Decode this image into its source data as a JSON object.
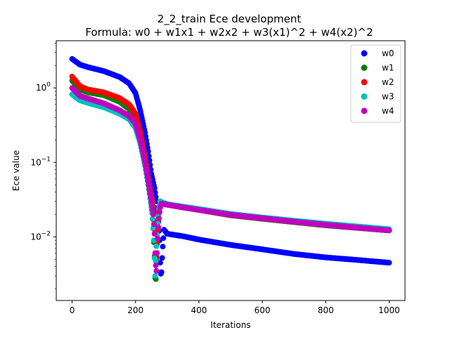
{
  "chart_data": {
    "type": "scatter",
    "title_line1": "2_2_train Ece development",
    "title_line2": "Formula: w0 + w1x1 + w2x2 + w3(x1)^2 + w4(x2)^2",
    "xlabel": "Iterations",
    "ylabel": "Ece value",
    "xlim": [
      -50,
      1050
    ],
    "ylim": [
      0.0014,
      4.3
    ],
    "yscale": "log",
    "xticks": [
      0,
      200,
      400,
      600,
      800,
      1000
    ],
    "xtick_labels": [
      "0",
      "200",
      "400",
      "600",
      "800",
      "1000"
    ],
    "yticks": [
      0.01,
      0.1,
      1
    ],
    "ytick_label_base": "10",
    "ytick_label_exps": [
      "−2",
      "−1",
      "0"
    ],
    "legend_placement": "upper right",
    "grid": false,
    "series": [
      {
        "name": "w0",
        "color": "#0000ff",
        "x": [
          0,
          25,
          50,
          100,
          150,
          180,
          200,
          215,
          230,
          240,
          250,
          260,
          266,
          272,
          276,
          278,
          281,
          285,
          290,
          300,
          350,
          400,
          500,
          600,
          700,
          800,
          900,
          1000
        ],
        "y": [
          2.45,
          2.05,
          1.9,
          1.68,
          1.4,
          1.15,
          0.85,
          0.5,
          0.25,
          0.14,
          0.07,
          0.045,
          0.03,
          0.016,
          0.009,
          0.0045,
          0.0027,
          0.0065,
          0.0125,
          0.011,
          0.0102,
          0.0092,
          0.0078,
          0.0068,
          0.0059,
          0.0053,
          0.0049,
          0.0045
        ]
      },
      {
        "name": "w1",
        "color": "#008000",
        "x": [
          0,
          25,
          50,
          100,
          150,
          180,
          200,
          215,
          230,
          240,
          248,
          252,
          256,
          260,
          263,
          266,
          270,
          274,
          278,
          285,
          300,
          350,
          400,
          500,
          600,
          700,
          800,
          900,
          1000
        ],
        "y": [
          1.25,
          0.95,
          0.87,
          0.8,
          0.65,
          0.52,
          0.38,
          0.22,
          0.1,
          0.055,
          0.032,
          0.023,
          0.013,
          0.0055,
          0.002,
          0.005,
          0.013,
          0.022,
          0.029,
          0.028,
          0.027,
          0.025,
          0.023,
          0.0195,
          0.0175,
          0.0158,
          0.0143,
          0.0132,
          0.0122
        ]
      },
      {
        "name": "w2",
        "color": "#ff0000",
        "x": [
          0,
          25,
          50,
          100,
          150,
          180,
          200,
          215,
          230,
          240,
          248,
          254,
          258,
          262,
          265,
          268,
          272,
          276,
          280,
          285,
          300,
          350,
          400,
          500,
          600,
          700,
          800,
          900,
          1000
        ],
        "y": [
          1.42,
          1.05,
          0.95,
          0.87,
          0.73,
          0.6,
          0.45,
          0.26,
          0.12,
          0.065,
          0.04,
          0.03,
          0.022,
          0.012,
          0.0043,
          0.0085,
          0.017,
          0.025,
          0.029,
          0.0285,
          0.027,
          0.025,
          0.023,
          0.0197,
          0.0177,
          0.016,
          0.0145,
          0.0133,
          0.0123
        ]
      },
      {
        "name": "w3",
        "color": "#00bfbf",
        "x": [
          0,
          25,
          50,
          100,
          150,
          180,
          200,
          215,
          230,
          240,
          250,
          255,
          258,
          262,
          266,
          270,
          274,
          278,
          285,
          300,
          350,
          400,
          500,
          600,
          700,
          800,
          900,
          1000
        ],
        "y": [
          0.82,
          0.68,
          0.63,
          0.55,
          0.45,
          0.38,
          0.29,
          0.18,
          0.09,
          0.05,
          0.025,
          0.016,
          0.009,
          0.003,
          0.0075,
          0.015,
          0.024,
          0.03,
          0.029,
          0.0275,
          0.0255,
          0.0237,
          0.0203,
          0.0182,
          0.0165,
          0.015,
          0.0138,
          0.0127
        ]
      },
      {
        "name": "w4",
        "color": "#bf00bf",
        "x": [
          0,
          25,
          50,
          100,
          150,
          180,
          200,
          215,
          230,
          240,
          250,
          256,
          260,
          263,
          266,
          269,
          273,
          277,
          282,
          290,
          300,
          350,
          400,
          500,
          600,
          700,
          800,
          900,
          1000
        ],
        "y": [
          1.0,
          0.78,
          0.72,
          0.62,
          0.5,
          0.42,
          0.33,
          0.2,
          0.1,
          0.056,
          0.03,
          0.02,
          0.011,
          0.0045,
          0.0035,
          0.008,
          0.016,
          0.024,
          0.028,
          0.0275,
          0.027,
          0.0248,
          0.023,
          0.0198,
          0.0178,
          0.016,
          0.0145,
          0.0133,
          0.0122
        ]
      }
    ]
  }
}
